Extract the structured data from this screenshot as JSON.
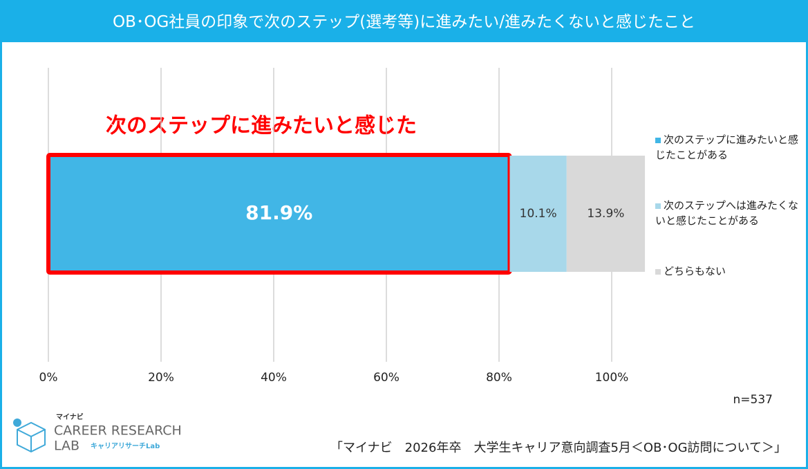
{
  "chart_data": {
    "type": "stacked-bar-horizontal",
    "title": "OB･OG社員の印象で次のステップ(選考等)に進みたい/進みたくないと感じたこと",
    "annotation": "次のステップに進みたいと感じた",
    "series": [
      {
        "name": "次のステップに進みたいと感じたことがある",
        "color": "#41b6e6",
        "values": [
          81.9
        ],
        "value_labels": [
          "81.9%"
        ]
      },
      {
        "name": "次のステップへは進みたくないと感じたことがある",
        "color": "#a8d8ea",
        "values": [
          10.1
        ],
        "value_labels": [
          "10.1%"
        ]
      },
      {
        "name": "どちらもない",
        "color": "#d9d9d9",
        "values": [
          13.9
        ],
        "value_labels": [
          "13.9%"
        ]
      }
    ],
    "xlim": [
      0,
      100
    ],
    "xticks": [
      {
        "value": 0,
        "label": "0%"
      },
      {
        "value": 20,
        "label": "20%"
      },
      {
        "value": 40,
        "label": "40%"
      },
      {
        "value": 60,
        "label": "60%"
      },
      {
        "value": 80,
        "label": "80%"
      },
      {
        "value": 100,
        "label": "100%"
      }
    ],
    "grid": true,
    "legend": "right",
    "highlight_color": "#ff0000"
  },
  "footer": {
    "sample": "n=537",
    "source": "「マイナビ　2026年卒　大学生キャリア意向調査5月＜OB･OG訪問について＞」",
    "logo": {
      "brand": "マイナビ",
      "line1": "CAREER RESEARCH",
      "line2": "LAB",
      "sub": "キャリアリサーチLab"
    }
  }
}
